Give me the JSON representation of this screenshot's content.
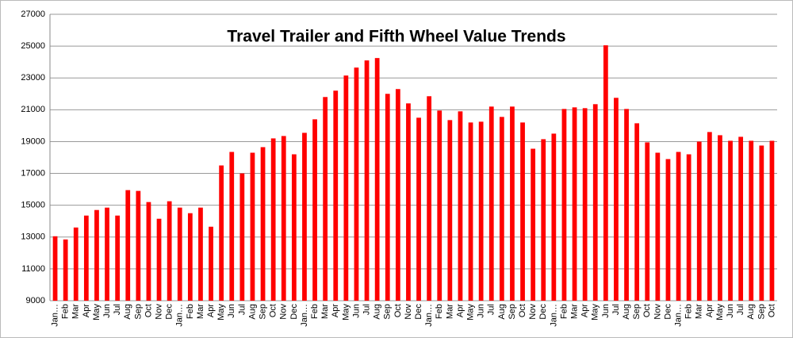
{
  "chart_data": {
    "type": "bar",
    "title": "Travel Trailer and Fifth Wheel Value Trends",
    "categories": [
      "Jan…",
      "Feb",
      "Mar",
      "Apr",
      "May",
      "Jun",
      "Jul",
      "Aug",
      "Sep",
      "Oct",
      "Nov",
      "Dec",
      "Jan…",
      "Feb",
      "Mar",
      "Apr",
      "May",
      "Jun",
      "Jul",
      "Aug",
      "Sep",
      "Oct",
      "Nov",
      "Dec",
      "Jan…",
      "Feb",
      "Mar",
      "Apr",
      "May",
      "Jun",
      "Jul",
      "Aug",
      "Sep",
      "Oct",
      "Nov",
      "Dec",
      "Jan…",
      "Feb",
      "Mar",
      "Apr",
      "May",
      "Jun",
      "Jul",
      "Aug",
      "Sep",
      "Oct",
      "Nov",
      "Dec",
      "Jan…",
      "Feb",
      "Mar",
      "Apr",
      "May",
      "Jun",
      "Jul",
      "Aug",
      "Sep",
      "Oct",
      "Nov",
      "Dec",
      "Jan…",
      "Feb",
      "Mar",
      "Apr",
      "May",
      "Jun",
      "Jul",
      "Aug",
      "Sep",
      "Oct"
    ],
    "values": [
      13050,
      12850,
      13600,
      14350,
      14700,
      14850,
      14350,
      15950,
      15900,
      15200,
      14150,
      15250,
      14850,
      14500,
      14850,
      13650,
      17500,
      18350,
      17000,
      18300,
      18650,
      19200,
      19350,
      18200,
      19550,
      20400,
      21800,
      22200,
      23150,
      23650,
      24100,
      24250,
      22000,
      22300,
      21400,
      20500,
      21850,
      20950,
      20350,
      20900,
      20200,
      20250,
      21200,
      20550,
      21200,
      20200,
      18550,
      19150,
      19500,
      21050,
      21150,
      21100,
      21350,
      25050,
      21750,
      21050,
      20150,
      18950,
      18300,
      17900,
      18350,
      18200,
      19000,
      19600,
      19400,
      19050,
      19300,
      19050,
      18750,
      19050
    ],
    "color": "#ff0000",
    "ylim": [
      9000,
      27000
    ],
    "yticks": [
      9000,
      11000,
      13000,
      15000,
      17000,
      19000,
      21000,
      23000,
      25000,
      27000
    ],
    "grid": true
  }
}
